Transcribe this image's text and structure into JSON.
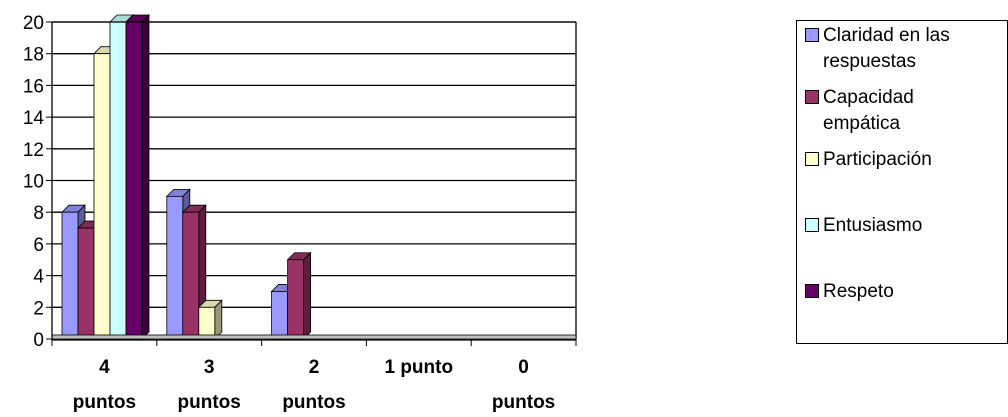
{
  "chart_data": {
    "type": "bar",
    "categories": [
      "4\npuntos",
      "3\npuntos",
      "2\npuntos",
      "1 punto",
      "0\npuntos"
    ],
    "series": [
      {
        "name": "Claridad en las\nrespuestas",
        "color": "#9999FF",
        "values": [
          8,
          9,
          3,
          0,
          0
        ]
      },
      {
        "name": "Capacidad\nempática",
        "color": "#993366",
        "values": [
          7,
          8,
          5,
          0,
          0
        ]
      },
      {
        "name": "Participación",
        "color": "#FFFFCC",
        "values": [
          18,
          2,
          0,
          0,
          0
        ]
      },
      {
        "name": "Entusiasmo",
        "color": "#CCFFFF",
        "values": [
          20,
          0,
          0,
          0,
          0
        ]
      },
      {
        "name": "Respeto",
        "color": "#660066",
        "values": [
          20,
          0,
          0,
          0,
          0
        ]
      }
    ],
    "ylim": [
      0,
      20
    ],
    "yticks": [
      0,
      2,
      4,
      6,
      8,
      10,
      12,
      14,
      16,
      18,
      20
    ],
    "grid": true,
    "legend": "right"
  }
}
